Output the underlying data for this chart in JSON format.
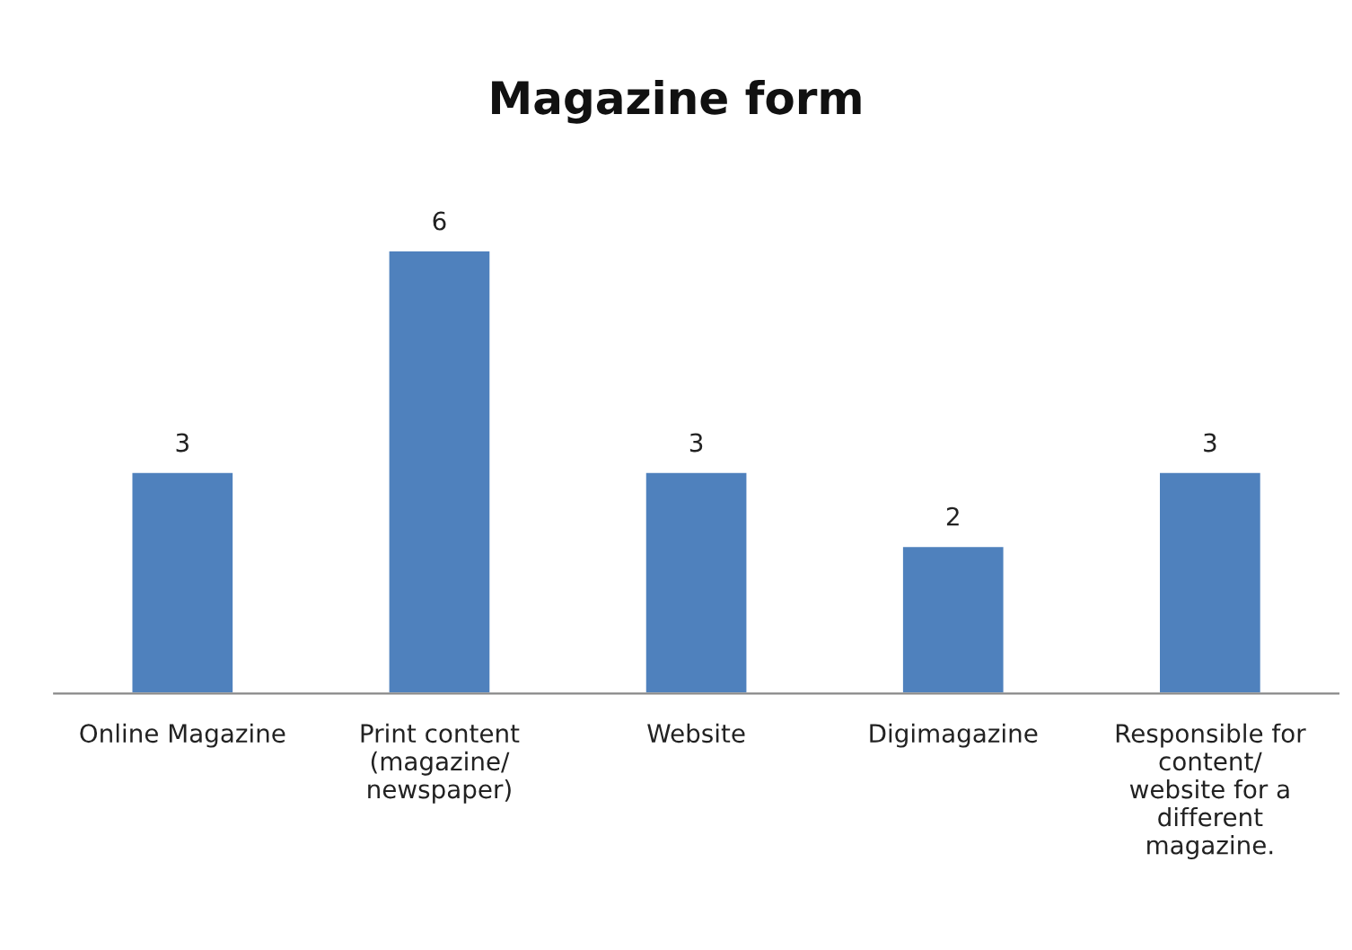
{
  "chart_data": {
    "type": "bar",
    "title": "Magazine form",
    "categories": [
      "Online Magazine",
      "Print content\n(magazine/\nnewspaper)",
      "Website",
      "Digimagazine",
      "Responsible for\ncontent/\nwebsite for a\ndifferent\nmagazine."
    ],
    "values": [
      3,
      6,
      3,
      2,
      3
    ],
    "color": "#4f81bd",
    "data_labels": true,
    "grid": false,
    "legend": false
  }
}
